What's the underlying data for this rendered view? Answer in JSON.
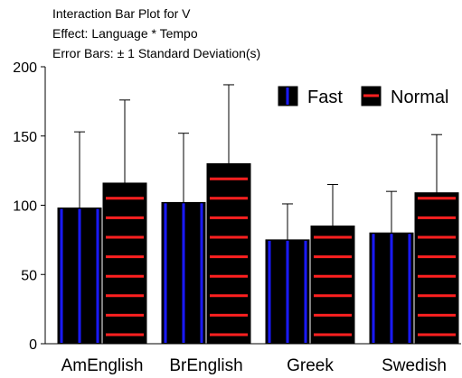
{
  "chart_data": {
    "type": "bar",
    "title_lines": [
      "Interaction Bar Plot for V",
      "Effect: Language * Tempo",
      "Error Bars: ± 1 Standard Deviation(s)"
    ],
    "categories": [
      "AmEnglish",
      "BrEnglish",
      "Greek",
      "Swedish"
    ],
    "series": [
      {
        "name": "Fast",
        "values": [
          98,
          102,
          75,
          80
        ],
        "sd": [
          55,
          50,
          26,
          30
        ],
        "fill": "#000000",
        "pattern": "vertical-lines",
        "pattern_color": "#1a1aff"
      },
      {
        "name": "Normal",
        "values": [
          116,
          130,
          85,
          109
        ],
        "sd": [
          60,
          57,
          30,
          42
        ],
        "fill": "#000000",
        "pattern": "horizontal-lines",
        "pattern_color": "#ff2020"
      }
    ],
    "ylim": [
      0,
      200
    ],
    "yticks": [
      0,
      50,
      100,
      150,
      200
    ],
    "error_bars": "upper",
    "legend_position": "top-right",
    "grid": false
  }
}
